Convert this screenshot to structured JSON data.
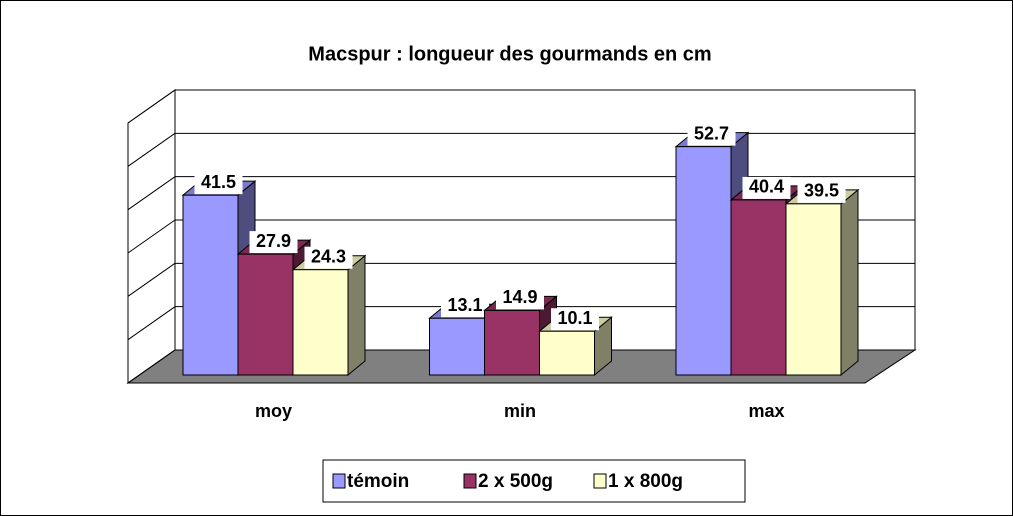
{
  "chart_data": {
    "type": "bar3d",
    "title": "Macspur : longueur des gourmands en cm",
    "categories": [
      "moy",
      "min",
      "max"
    ],
    "series": [
      {
        "name": "témoin",
        "color": "#9999ff",
        "values": [
          41.5,
          13.1,
          52.7
        ]
      },
      {
        "name": "2 x 500g",
        "color": "#993366",
        "values": [
          27.9,
          14.9,
          40.4
        ]
      },
      {
        "name": "1 x 800g",
        "color": "#ffffcc",
        "values": [
          24.3,
          10.1,
          39.5
        ]
      }
    ],
    "ylim": [
      0,
      60
    ],
    "yticks": [
      0,
      10,
      20,
      30,
      40,
      50,
      60
    ],
    "grid": true,
    "legend": "bottom"
  }
}
